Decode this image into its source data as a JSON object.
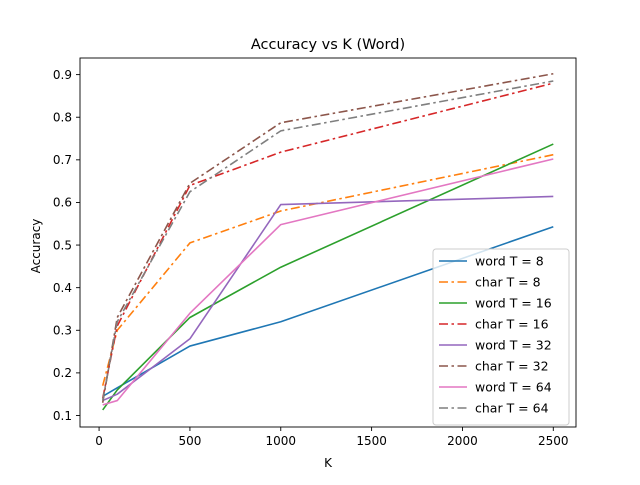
{
  "chart_data": {
    "type": "line",
    "title": "Accuracy vs K (Word)",
    "xlabel": "K",
    "ylabel": "Accuracy",
    "xlim": [
      -105,
      2625
    ],
    "ylim": [
      0.073,
      0.939
    ],
    "xticks": [
      0,
      500,
      1000,
      1500,
      2000,
      2500
    ],
    "xtick_labels": [
      "0",
      "500",
      "1000",
      "1500",
      "2000",
      "2500"
    ],
    "yticks": [
      0.1,
      0.2,
      0.3,
      0.4,
      0.5,
      0.6,
      0.7,
      0.8,
      0.9
    ],
    "ytick_labels": [
      "0.1",
      "0.2",
      "0.3",
      "0.4",
      "0.5",
      "0.6",
      "0.7",
      "0.8",
      "0.9"
    ],
    "grid": false,
    "legend_position": "lower-right",
    "x": [
      20,
      100,
      500,
      1000,
      2500
    ],
    "series": [
      {
        "name": "word T = 8",
        "color": "#1f77b4",
        "style": "solid",
        "values": [
          0.145,
          0.165,
          0.263,
          0.32,
          0.543
        ]
      },
      {
        "name": "char T = 8",
        "color": "#ff7f0e",
        "style": "dashdot",
        "values": [
          0.17,
          0.3,
          0.505,
          0.58,
          0.712
        ]
      },
      {
        "name": "word T = 16",
        "color": "#2ca02c",
        "style": "solid",
        "values": [
          0.113,
          0.16,
          0.33,
          0.448,
          0.737
        ]
      },
      {
        "name": "char T = 16",
        "color": "#d62728",
        "style": "dashdot",
        "values": [
          0.14,
          0.31,
          0.64,
          0.718,
          0.88
        ]
      },
      {
        "name": "word T = 32",
        "color": "#9467bd",
        "style": "solid",
        "values": [
          0.135,
          0.15,
          0.28,
          0.595,
          0.614
        ]
      },
      {
        "name": "char T = 32",
        "color": "#8c564b",
        "style": "dashdot",
        "values": [
          0.13,
          0.33,
          0.645,
          0.787,
          0.902
        ]
      },
      {
        "name": "word T = 64",
        "color": "#e377c2",
        "style": "solid",
        "values": [
          0.125,
          0.135,
          0.34,
          0.548,
          0.702
        ]
      },
      {
        "name": "char T = 64",
        "color": "#7f7f7f",
        "style": "dashdot",
        "values": [
          0.135,
          0.32,
          0.625,
          0.768,
          0.885
        ]
      }
    ]
  }
}
